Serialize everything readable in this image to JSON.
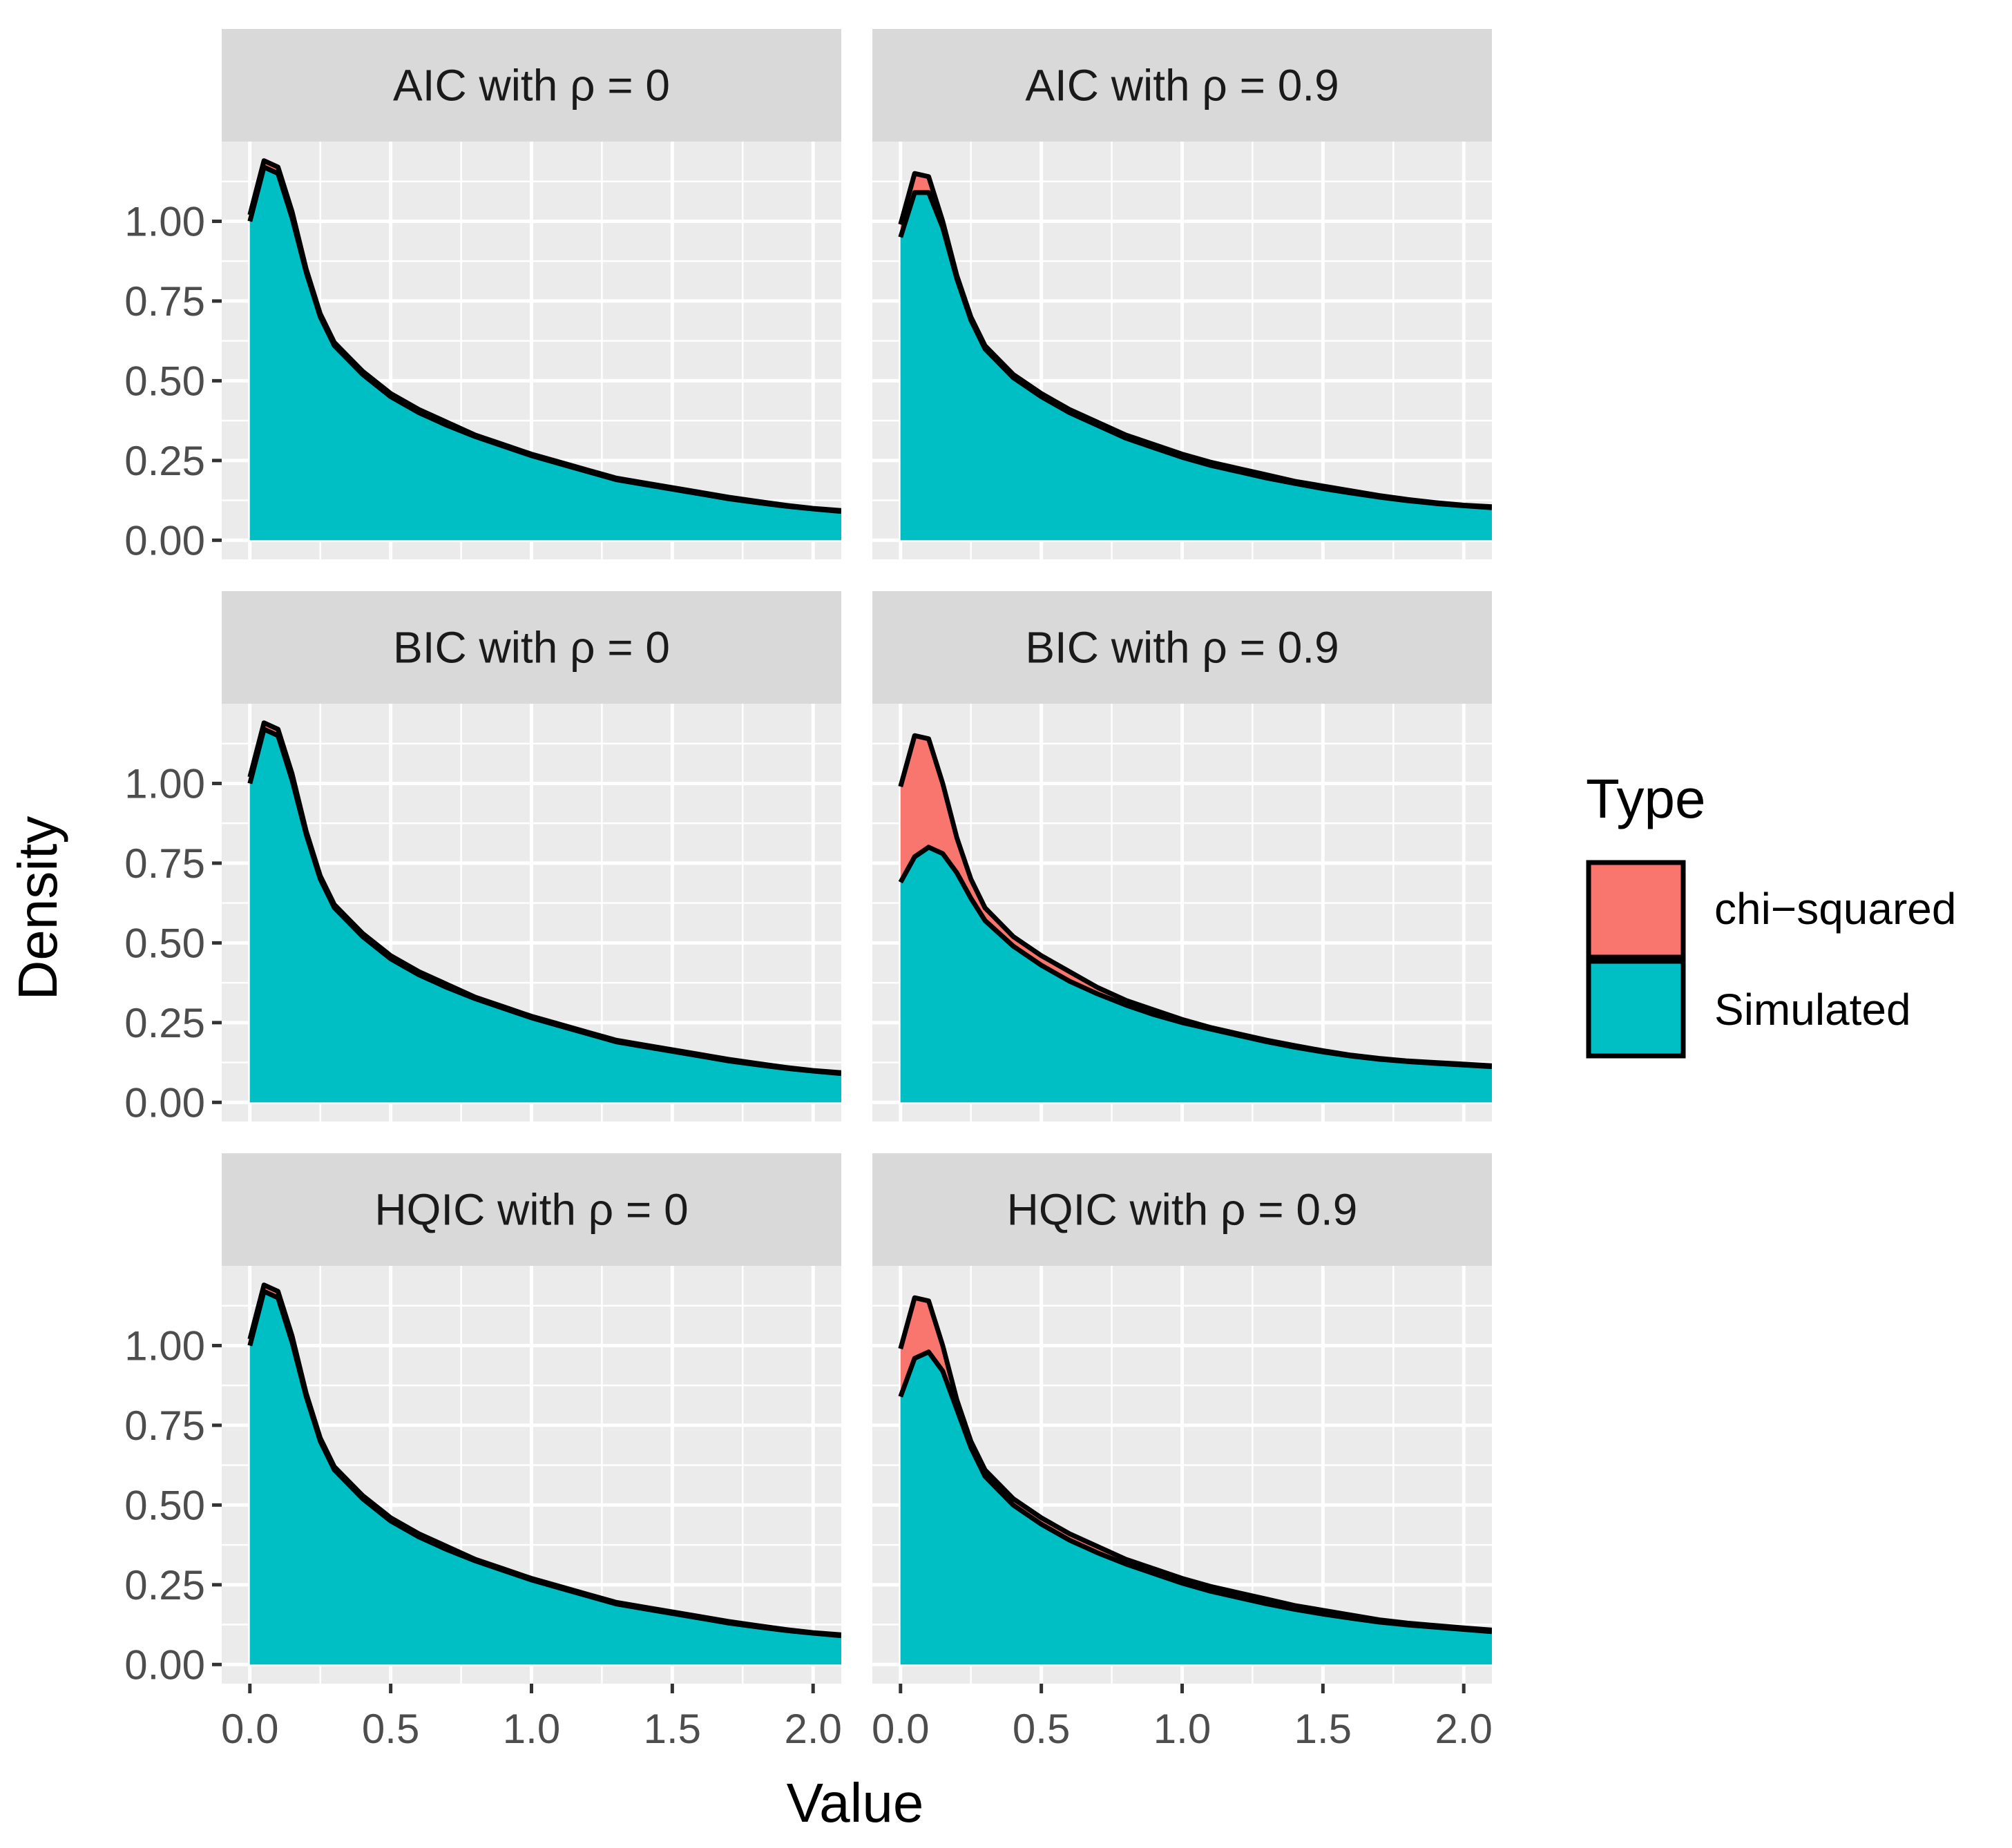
{
  "chart_data": {
    "type": "area",
    "xlabel": "Value",
    "ylabel": "Density",
    "xlim": [
      -0.1,
      2.1
    ],
    "ylim": [
      -0.06,
      1.25
    ],
    "x_ticks": [
      0.0,
      0.5,
      1.0,
      1.5,
      2.0
    ],
    "x_tick_labels": [
      "0.0",
      "0.5",
      "1.0",
      "1.5",
      "2.0"
    ],
    "y_ticks": [
      0.0,
      0.25,
      0.5,
      0.75,
      1.0
    ],
    "y_tick_labels": [
      "0.00",
      "0.25",
      "0.50",
      "0.75",
      "1.00"
    ],
    "legend": {
      "title": "Type",
      "position": "right",
      "entries": [
        {
          "label": "chi−squared",
          "color": "#F8766D"
        },
        {
          "label": "Simulated",
          "color": "#00BFC4"
        }
      ]
    },
    "panels": [
      {
        "title": "AIC with ρ = 0",
        "x": [
          0.0,
          0.05,
          0.1,
          0.15,
          0.2,
          0.25,
          0.3,
          0.4,
          0.5,
          0.6,
          0.7,
          0.8,
          0.9,
          1.0,
          1.1,
          1.2,
          1.3,
          1.4,
          1.5,
          1.6,
          1.7,
          1.8,
          1.9,
          2.0,
          2.1
        ],
        "series": [
          {
            "name": "chi−squared",
            "values": [
              1.02,
              1.19,
              1.17,
              1.03,
              0.85,
              0.71,
              0.62,
              0.53,
              0.46,
              0.41,
              0.37,
              0.33,
              0.3,
              0.27,
              0.245,
              0.22,
              0.195,
              0.18,
              0.165,
              0.15,
              0.135,
              0.122,
              0.11,
              0.1,
              0.093
            ]
          },
          {
            "name": "Simulated",
            "values": [
              1.0,
              1.17,
              1.15,
              1.01,
              0.84,
              0.7,
              0.61,
              0.52,
              0.45,
              0.4,
              0.36,
              0.325,
              0.295,
              0.265,
              0.24,
              0.215,
              0.19,
              0.175,
              0.16,
              0.145,
              0.13,
              0.118,
              0.107,
              0.098,
              0.09
            ]
          }
        ]
      },
      {
        "title": "AIC with ρ = 0.9",
        "x": [
          0.0,
          0.05,
          0.1,
          0.15,
          0.2,
          0.25,
          0.3,
          0.4,
          0.5,
          0.6,
          0.7,
          0.8,
          0.9,
          1.0,
          1.1,
          1.2,
          1.3,
          1.4,
          1.5,
          1.6,
          1.7,
          1.8,
          1.9,
          2.0,
          2.1
        ],
        "series": [
          {
            "name": "chi−squared",
            "values": [
              0.99,
              1.15,
              1.14,
              1.0,
              0.83,
              0.7,
              0.61,
              0.52,
              0.46,
              0.41,
              0.37,
              0.33,
              0.3,
              0.27,
              0.245,
              0.225,
              0.205,
              0.185,
              0.17,
              0.155,
              0.14,
              0.128,
              0.118,
              0.11,
              0.105
            ]
          },
          {
            "name": "Simulated",
            "values": [
              0.95,
              1.09,
              1.09,
              0.98,
              0.82,
              0.69,
              0.6,
              0.51,
              0.45,
              0.4,
              0.36,
              0.32,
              0.29,
              0.26,
              0.235,
              0.215,
              0.195,
              0.178,
              0.162,
              0.148,
              0.135,
              0.124,
              0.115,
              0.108,
              0.102
            ]
          }
        ]
      },
      {
        "title": "BIC with ρ = 0",
        "x": [
          0.0,
          0.05,
          0.1,
          0.15,
          0.2,
          0.25,
          0.3,
          0.4,
          0.5,
          0.6,
          0.7,
          0.8,
          0.9,
          1.0,
          1.1,
          1.2,
          1.3,
          1.4,
          1.5,
          1.6,
          1.7,
          1.8,
          1.9,
          2.0,
          2.1
        ],
        "series": [
          {
            "name": "chi−squared",
            "values": [
              1.02,
              1.19,
              1.17,
              1.03,
              0.85,
              0.71,
              0.62,
              0.53,
              0.46,
              0.41,
              0.37,
              0.33,
              0.3,
              0.27,
              0.245,
              0.22,
              0.195,
              0.18,
              0.165,
              0.15,
              0.135,
              0.122,
              0.11,
              0.1,
              0.093
            ]
          },
          {
            "name": "Simulated",
            "values": [
              1.0,
              1.17,
              1.15,
              1.01,
              0.84,
              0.7,
              0.61,
              0.52,
              0.45,
              0.4,
              0.36,
              0.325,
              0.295,
              0.265,
              0.24,
              0.215,
              0.19,
              0.175,
              0.16,
              0.145,
              0.13,
              0.118,
              0.107,
              0.098,
              0.09
            ]
          }
        ]
      },
      {
        "title": "BIC with ρ = 0.9",
        "x": [
          0.0,
          0.05,
          0.1,
          0.15,
          0.2,
          0.25,
          0.3,
          0.4,
          0.5,
          0.6,
          0.7,
          0.8,
          0.9,
          1.0,
          1.1,
          1.2,
          1.3,
          1.4,
          1.5,
          1.6,
          1.7,
          1.8,
          1.9,
          2.0,
          2.1
        ],
        "series": [
          {
            "name": "chi−squared",
            "values": [
              0.99,
              1.15,
              1.14,
              1.0,
              0.83,
              0.7,
              0.61,
              0.52,
              0.46,
              0.41,
              0.36,
              0.32,
              0.29,
              0.26,
              0.235,
              0.215,
              0.195,
              0.178,
              0.162,
              0.148,
              0.138,
              0.13,
              0.125,
              0.12,
              0.115
            ]
          },
          {
            "name": "Simulated",
            "values": [
              0.69,
              0.77,
              0.8,
              0.78,
              0.72,
              0.64,
              0.57,
              0.49,
              0.43,
              0.38,
              0.34,
              0.305,
              0.275,
              0.25,
              0.23,
              0.21,
              0.19,
              0.173,
              0.158,
              0.145,
              0.135,
              0.128,
              0.122,
              0.117,
              0.112
            ]
          }
        ]
      },
      {
        "title": "HQIC with ρ = 0",
        "x": [
          0.0,
          0.05,
          0.1,
          0.15,
          0.2,
          0.25,
          0.3,
          0.4,
          0.5,
          0.6,
          0.7,
          0.8,
          0.9,
          1.0,
          1.1,
          1.2,
          1.3,
          1.4,
          1.5,
          1.6,
          1.7,
          1.8,
          1.9,
          2.0,
          2.1
        ],
        "series": [
          {
            "name": "chi−squared",
            "values": [
              1.02,
              1.19,
              1.17,
              1.03,
              0.85,
              0.71,
              0.62,
              0.53,
              0.46,
              0.41,
              0.37,
              0.33,
              0.3,
              0.27,
              0.245,
              0.22,
              0.195,
              0.18,
              0.165,
              0.15,
              0.135,
              0.122,
              0.11,
              0.1,
              0.093
            ]
          },
          {
            "name": "Simulated",
            "values": [
              1.0,
              1.17,
              1.15,
              1.01,
              0.84,
              0.7,
              0.61,
              0.52,
              0.45,
              0.4,
              0.36,
              0.325,
              0.295,
              0.265,
              0.24,
              0.215,
              0.19,
              0.175,
              0.16,
              0.145,
              0.13,
              0.118,
              0.107,
              0.098,
              0.09
            ]
          }
        ]
      },
      {
        "title": "HQIC with ρ = 0.9",
        "x": [
          0.0,
          0.05,
          0.1,
          0.15,
          0.2,
          0.25,
          0.3,
          0.4,
          0.5,
          0.6,
          0.7,
          0.8,
          0.9,
          1.0,
          1.1,
          1.2,
          1.3,
          1.4,
          1.5,
          1.6,
          1.7,
          1.8,
          1.9,
          2.0,
          2.1
        ],
        "series": [
          {
            "name": "chi−squared",
            "values": [
              0.99,
              1.15,
              1.14,
              1.0,
              0.83,
              0.7,
              0.61,
              0.52,
              0.46,
              0.41,
              0.37,
              0.33,
              0.3,
              0.27,
              0.245,
              0.225,
              0.205,
              0.185,
              0.17,
              0.155,
              0.14,
              0.13,
              0.122,
              0.115,
              0.108
            ]
          },
          {
            "name": "Simulated",
            "values": [
              0.84,
              0.96,
              0.98,
              0.92,
              0.8,
              0.68,
              0.59,
              0.5,
              0.44,
              0.39,
              0.35,
              0.315,
              0.285,
              0.255,
              0.23,
              0.21,
              0.19,
              0.173,
              0.158,
              0.145,
              0.133,
              0.124,
              0.117,
              0.11,
              0.103
            ]
          }
        ]
      }
    ]
  }
}
